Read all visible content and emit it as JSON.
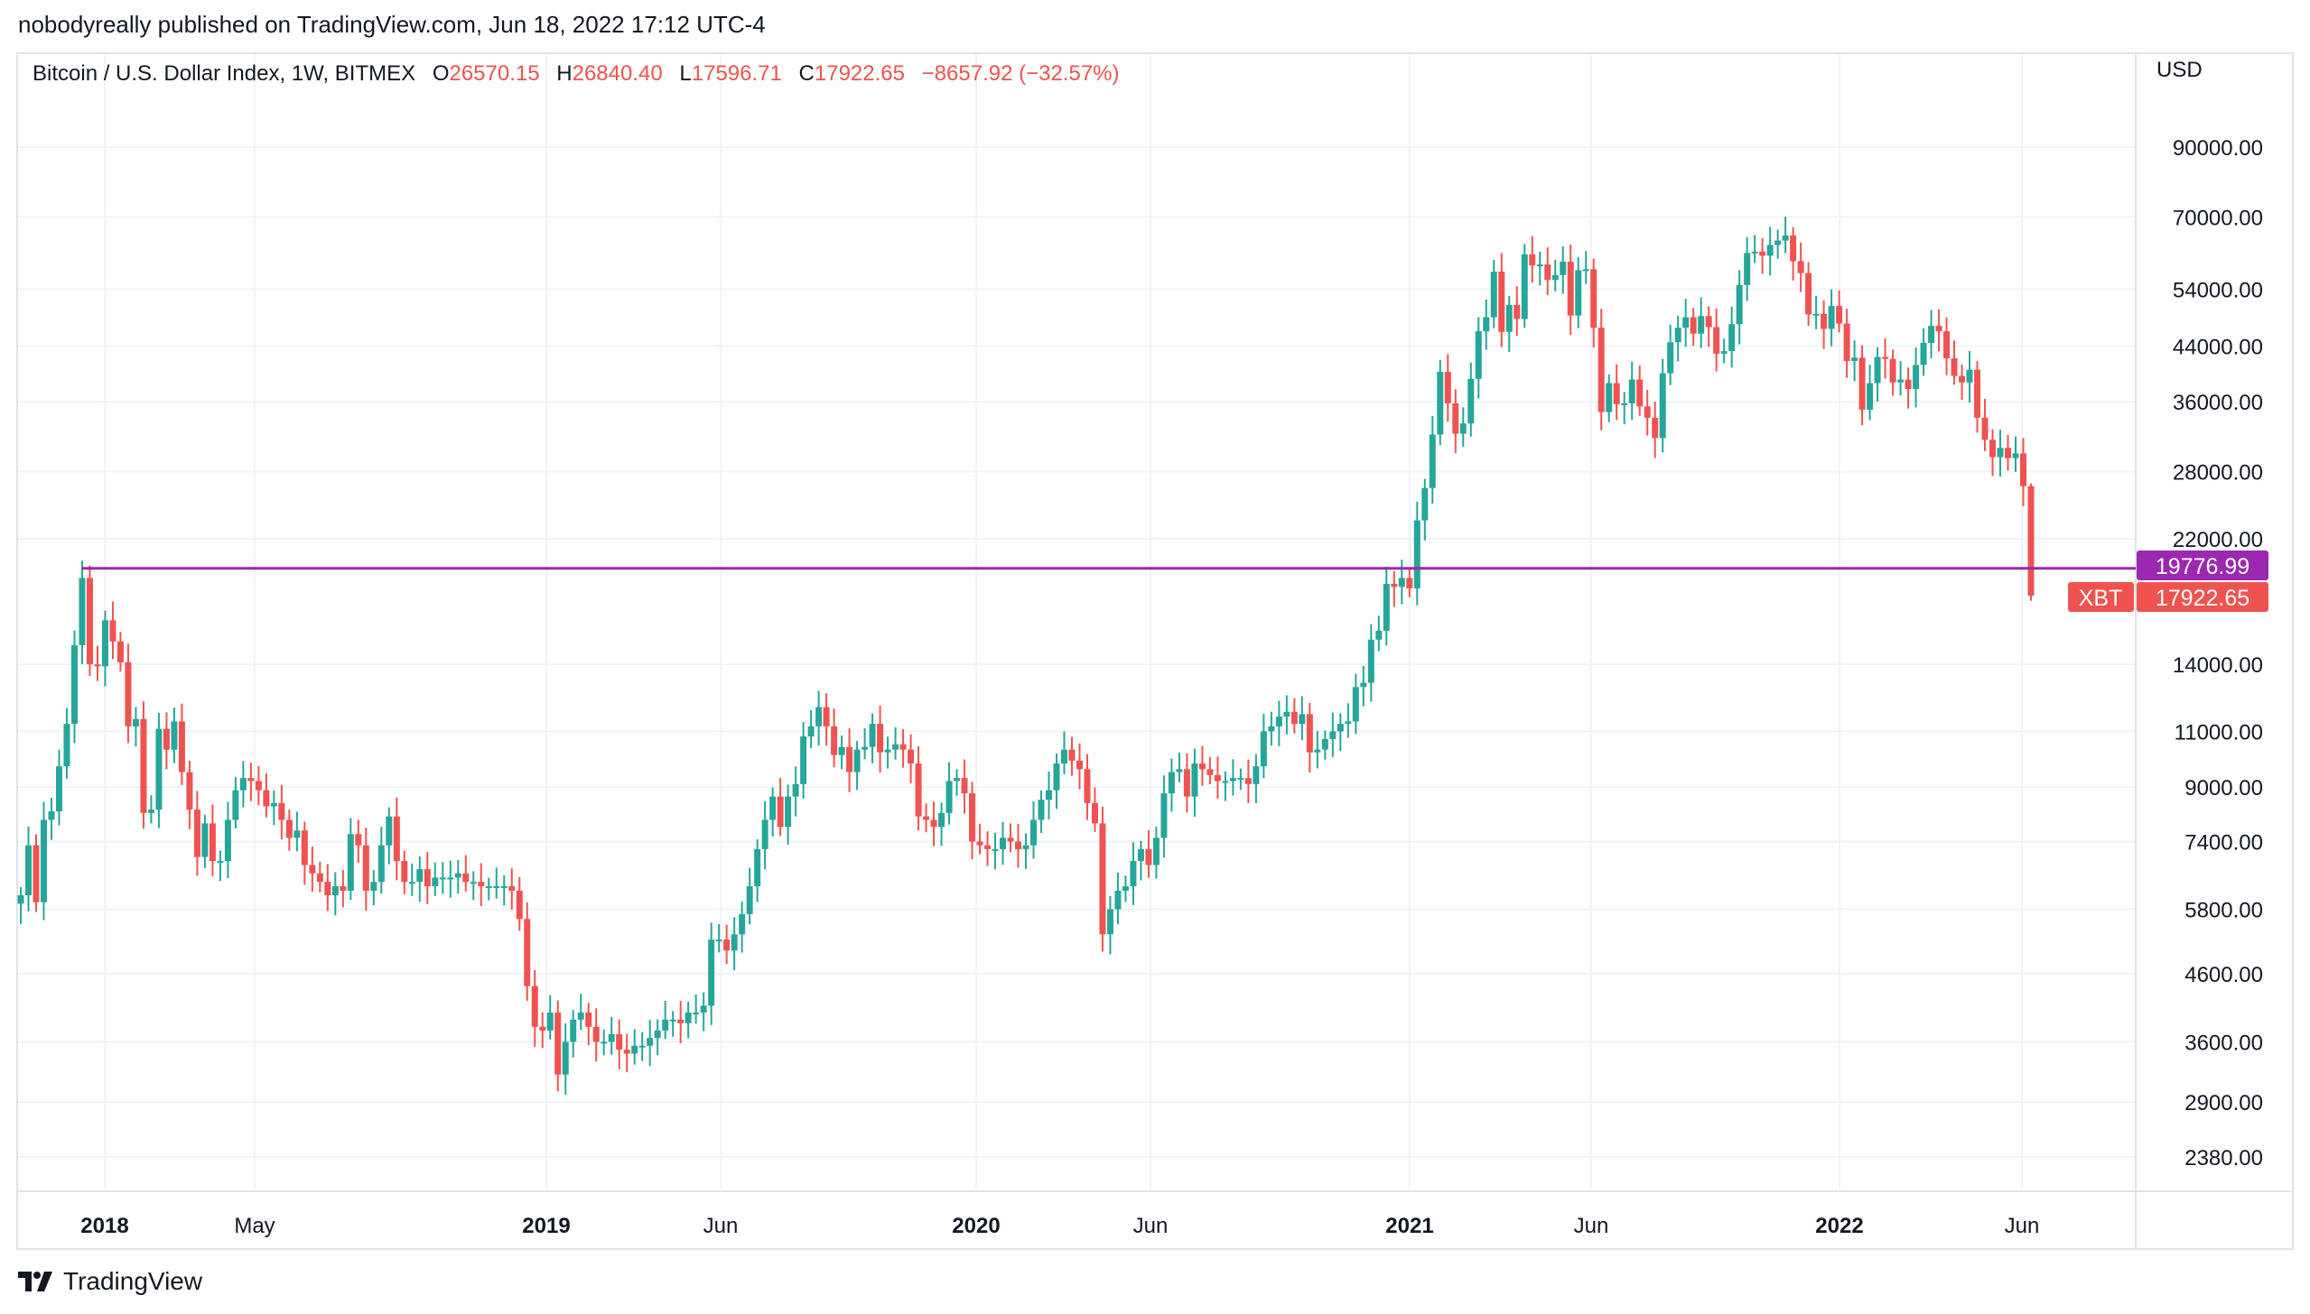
{
  "header": {
    "published": "nobodyreally published on TradingView.com, Jun 18, 2022 17:12 UTC-4"
  },
  "legend": {
    "symbol": "Bitcoin / U.S. Dollar Index, 1W, BITMEX",
    "o_label": "O",
    "o": "26570.15",
    "h_label": "H",
    "h": "26840.40",
    "l_label": "L",
    "l": "17596.71",
    "c_label": "C",
    "c": "17922.65",
    "change": "−8657.92 (−32.57%)"
  },
  "price_axis": {
    "currency": "USD"
  },
  "footer": {
    "brand": "TradingView"
  },
  "colors": {
    "up": "#26a69a",
    "down": "#ef5350",
    "level": "#9c27b0",
    "grid": "#f0f3fa"
  },
  "chart_data": {
    "type": "candlestick",
    "title": "Bitcoin / U.S. Dollar Index, 1W, BITMEX",
    "scale": "log",
    "ylim": [
      2100,
      105000
    ],
    "y_ticks": [
      "90000.00",
      "70000.00",
      "54000.00",
      "44000.00",
      "36000.00",
      "28000.00",
      "22000.00",
      "14000.00",
      "11000.00",
      "9000.00",
      "7400.00",
      "5800.00",
      "4600.00",
      "3600.00",
      "2900.00",
      "2380.00"
    ],
    "x_ticks": [
      {
        "label": "2018",
        "year": true
      },
      {
        "label": "May",
        "year": false
      },
      {
        "label": "2019",
        "year": true
      },
      {
        "label": "Jun",
        "year": false
      },
      {
        "label": "2020",
        "year": true
      },
      {
        "label": "Jun",
        "year": false
      },
      {
        "label": "2021",
        "year": true
      },
      {
        "label": "Jun",
        "year": false
      },
      {
        "label": "2022",
        "year": true
      },
      {
        "label": "Jun",
        "year": false
      }
    ],
    "first_week": "2017-10-23",
    "last_week": "2022-06-13",
    "weekly_closes": [
      6100,
      7300,
      5950,
      8000,
      8250,
      9700,
      11300,
      15000,
      19100,
      14000,
      13900,
      16400,
      15200,
      14100,
      11200,
      11500,
      8200,
      8300,
      11100,
      10300,
      11400,
      9500,
      8300,
      7000,
      7900,
      6900,
      6900,
      8000,
      8900,
      9300,
      9200,
      8900,
      8400,
      8500,
      8000,
      7500,
      7700,
      6800,
      6600,
      6400,
      6100,
      6300,
      6200,
      7600,
      7300,
      6200,
      6400,
      7300,
      8100,
      6900,
      6400,
      6400,
      6700,
      6300,
      6500,
      6500,
      6500,
      6600,
      6400,
      6400,
      6300,
      6300,
      6300,
      6300,
      6200,
      5600,
      4400,
      3800,
      3750,
      4000,
      3200,
      3600,
      3900,
      4000,
      3800,
      3600,
      3600,
      3700,
      3500,
      3450,
      3550,
      3550,
      3650,
      3750,
      3900,
      3900,
      3850,
      4000,
      4000,
      4100,
      5200,
      5200,
      5000,
      5300,
      5700,
      6300,
      7200,
      8000,
      8700,
      7800,
      8700,
      9100,
      10800,
      11200,
      12000,
      11200,
      10100,
      10400,
      9500,
      10300,
      10400,
      11300,
      10200,
      10300,
      10500,
      10300,
      9800,
      8100,
      8000,
      7800,
      8200,
      9200,
      9300,
      8800,
      7400,
      7300,
      7200,
      7200,
      7500,
      7400,
      7200,
      7300,
      8000,
      8600,
      8900,
      9800,
      10300,
      9900,
      9600,
      8500,
      7900,
      5300,
      5800,
      6200,
      6300,
      6900,
      7200,
      6800,
      7500,
      8800,
      9500,
      9600,
      8700,
      9800,
      9600,
      9400,
      9200,
      9200,
      9300,
      9300,
      9100,
      9700,
      11000,
      11200,
      11600,
      11800,
      11300,
      11700,
      10200,
      10300,
      10700,
      11000,
      11300,
      11400,
      12900,
      13100,
      15300,
      15800,
      18700,
      18500,
      19100,
      18400,
      23500,
      26400,
      32000,
      40100,
      35800,
      32100,
      33300,
      39100,
      46400,
      48800,
      57500,
      46300,
      51000,
      48500,
      61200,
      58800,
      59000,
      55800,
      56800,
      59600,
      49100,
      57800,
      58000,
      47000,
      34700,
      38500,
      35700,
      35800,
      39000,
      35400,
      34000,
      31600,
      39900,
      44600,
      47000,
      48800,
      46000,
      49000,
      47100,
      42800,
      43200,
      47600,
      54800,
      61500,
      61800,
      60900,
      63300,
      64300,
      65500,
      59700,
      57200,
      49300,
      49400,
      46800,
      50800,
      47700,
      41700,
      42200,
      35000,
      38500,
      42300,
      42000,
      38600,
      39000,
      37700,
      41100,
      44500,
      47300,
      46400,
      42100,
      39500,
      38600,
      40400,
      34000,
      31400,
      29500,
      30500,
      29400,
      29900,
      26570.15,
      17922.65
    ],
    "last_candle": {
      "open": 26570.15,
      "high": 26840.4,
      "low": 17596.71,
      "close": 17922.65
    },
    "horizontal_level": {
      "value": "19776.99",
      "start": "2017-12-11"
    },
    "last_price_label": {
      "symbol": "XBT",
      "value": "17922.65"
    }
  }
}
